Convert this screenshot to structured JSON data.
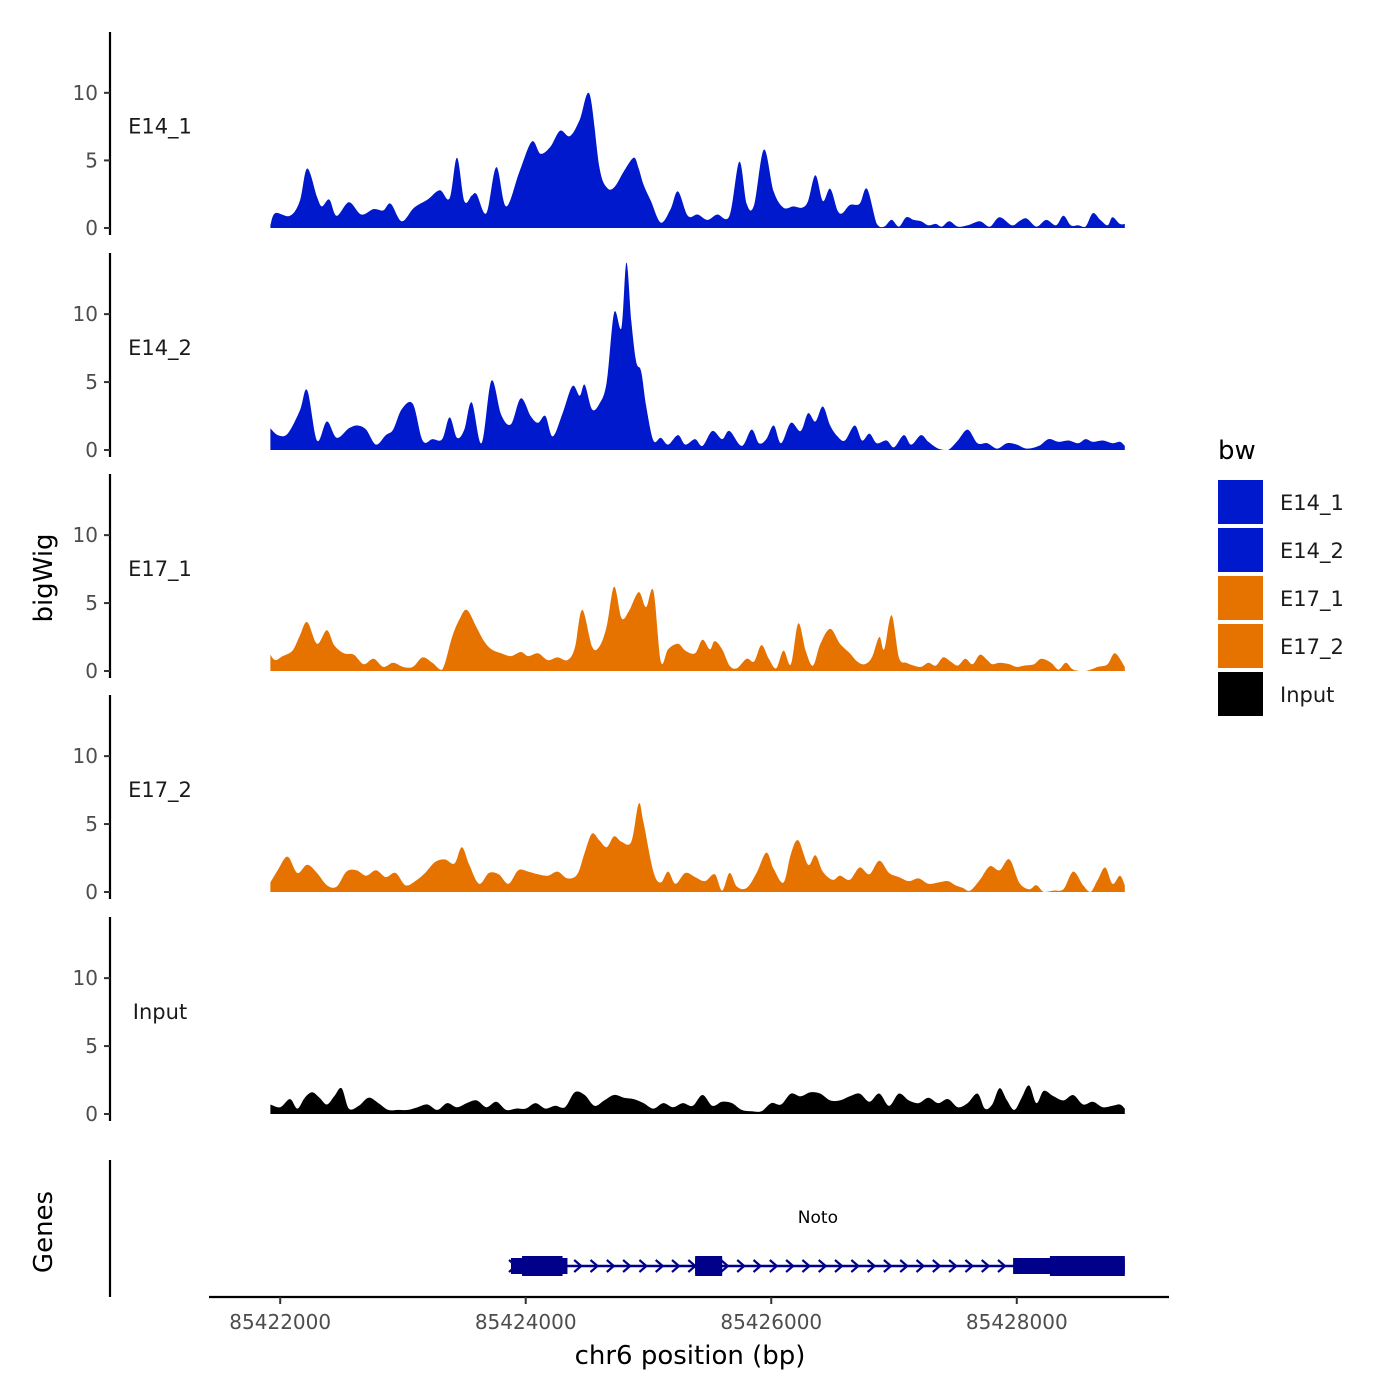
{
  "chart_data": {
    "type": "area",
    "xlabel": "chr6 position (bp)",
    "ylabel": "bigWig",
    "genes_label": "Genes",
    "xlim": [
      85421420,
      85429240
    ],
    "x_ticks": [
      85422000,
      85424000,
      85426000,
      85428000
    ],
    "ylim": [
      0,
      14.5
    ],
    "y_ticks": [
      0,
      5,
      10
    ],
    "legend": {
      "title": "bw",
      "items": [
        {
          "label": "E14_1",
          "color": "#0019CC"
        },
        {
          "label": "E14_2",
          "color": "#0019CC"
        },
        {
          "label": "E17_1",
          "color": "#E67300"
        },
        {
          "label": "E17_2",
          "color": "#E67300"
        },
        {
          "label": "Input",
          "color": "#000000"
        }
      ]
    },
    "tracks": [
      {
        "name": "E14_1",
        "color": "#0019CC",
        "x": [
          85421920,
          85421960,
          85422080,
          85422160,
          85422220,
          85422300,
          85422340,
          85422400,
          85422460,
          85422560,
          85422660,
          85422760,
          85422840,
          85422900,
          85422990,
          85423090,
          85423200,
          85423300,
          85423380,
          85423440,
          85423500,
          85423560,
          85423600,
          85423680,
          85423760,
          85423840,
          85423950,
          85424050,
          85424120,
          85424200,
          85424280,
          85424360,
          85424440,
          85424520,
          85424600,
          85424660,
          85424720,
          85424800,
          85424880,
          85424920,
          85424960,
          85425020,
          85425100,
          85425180,
          85425240,
          85425320,
          85425400,
          85425480,
          85425560,
          85425660,
          85425740,
          85425800,
          85425860,
          85425940,
          85426020,
          85426100,
          85426180,
          85426250,
          85426300,
          85426360,
          85426420,
          85426480,
          85426540,
          85426580,
          85426640,
          85426720,
          85426780,
          85426860,
          85426920,
          85426980,
          85427040,
          85427100,
          85427160,
          85427220,
          85427280,
          85427340,
          85427390,
          85427450,
          85427520,
          85427600,
          85427700,
          85427780,
          85427860,
          85427960,
          85428020,
          85428080,
          85428160,
          85428240,
          85428320,
          85428380,
          85428440,
          85428500,
          85428560,
          85428620,
          85428680,
          85428740,
          85428780,
          85428840,
          85428880
        ],
        "values": [
          0.2,
          1.1,
          0.9,
          2.0,
          4.4,
          2.3,
          1.6,
          2.1,
          0.9,
          1.9,
          1.0,
          1.4,
          1.3,
          1.8,
          0.5,
          1.5,
          2.1,
          2.8,
          2.2,
          5.2,
          2.0,
          2.4,
          2.5,
          1.1,
          4.5,
          1.6,
          4.2,
          6.4,
          5.5,
          6.0,
          7.2,
          6.8,
          8.0,
          9.9,
          4.5,
          3.0,
          3.0,
          4.2,
          5.2,
          4.4,
          3.2,
          2.0,
          0.4,
          1.4,
          2.7,
          0.9,
          1.0,
          0.6,
          1.0,
          0.9,
          4.9,
          1.8,
          1.7,
          5.8,
          2.7,
          1.5,
          1.6,
          1.5,
          2.0,
          3.9,
          2.0,
          2.9,
          1.3,
          1.1,
          1.7,
          1.8,
          2.9,
          0.3,
          0.1,
          0.6,
          0.1,
          0.8,
          0.6,
          0.5,
          0.2,
          0.3,
          0.1,
          0.5,
          0.1,
          0.2,
          0.5,
          0.1,
          0.8,
          0.2,
          0.5,
          0.7,
          0.1,
          0.6,
          0.2,
          0.9,
          0.2,
          0.2,
          0.1,
          1.1,
          0.6,
          0.2,
          0.8,
          0.3,
          0.3
        ]
      },
      {
        "name": "E14_2",
        "color": "#0019CC",
        "x": [
          85421920,
          85421980,
          85422060,
          85422160,
          85422220,
          85422300,
          85422380,
          85422460,
          85422560,
          85422630,
          85422700,
          85422780,
          85422860,
          85422920,
          85422990,
          85423080,
          85423160,
          85423240,
          85423320,
          85423380,
          85423440,
          85423500,
          85423560,
          85423640,
          85423720,
          85423800,
          85423880,
          85423960,
          85424040,
          85424100,
          85424160,
          85424220,
          85424300,
          85424380,
          85424440,
          85424480,
          85424540,
          85424600,
          85424660,
          85424720,
          85424780,
          85424820,
          85424860,
          85424900,
          85424940,
          85424980,
          85425040,
          85425100,
          85425160,
          85425240,
          85425300,
          85425380,
          85425440,
          85425520,
          85425600,
          85425660,
          85425760,
          85425840,
          85425900,
          85425960,
          85426020,
          85426080,
          85426160,
          85426240,
          85426300,
          85426360,
          85426420,
          85426480,
          85426540,
          85426600,
          85426680,
          85426740,
          85426800,
          85426860,
          85426940,
          85427000,
          85427080,
          85427140,
          85427220,
          85427280,
          85427360,
          85427440,
          85427520,
          85427600,
          85427680,
          85427760,
          85427840,
          85427920,
          85428000,
          85428080,
          85428180,
          85428260,
          85428340,
          85428420,
          85428500,
          85428560,
          85428620,
          85428700,
          85428780,
          85428840,
          85428880
        ],
        "values": [
          1.6,
          1.1,
          1.2,
          2.9,
          4.4,
          0.7,
          2.1,
          0.9,
          1.6,
          1.8,
          1.5,
          0.4,
          1.1,
          1.5,
          3.0,
          3.4,
          0.7,
          0.8,
          0.8,
          2.4,
          0.9,
          1.5,
          3.5,
          0.5,
          5.1,
          2.6,
          1.9,
          3.8,
          2.5,
          2.0,
          2.5,
          1.0,
          2.7,
          4.7,
          4.0,
          4.8,
          3.0,
          3.4,
          5.0,
          10.1,
          9.0,
          13.8,
          9.5,
          6.5,
          5.8,
          3.3,
          0.7,
          0.9,
          0.4,
          1.1,
          0.4,
          0.8,
          0.3,
          1.4,
          0.8,
          1.4,
          0.3,
          1.5,
          0.5,
          0.8,
          1.8,
          0.5,
          2.0,
          1.4,
          2.7,
          2.1,
          3.2,
          1.8,
          1.0,
          0.7,
          1.8,
          0.7,
          1.2,
          0.5,
          0.7,
          0.2,
          1.1,
          0.4,
          1.1,
          0.6,
          0.1,
          0.0,
          0.7,
          1.5,
          0.5,
          0.5,
          0.1,
          0.5,
          0.4,
          0.1,
          0.3,
          0.8,
          0.6,
          0.7,
          0.5,
          0.8,
          0.6,
          0.7,
          0.5,
          0.6,
          0.3
        ]
      },
      {
        "name": "E17_1",
        "color": "#E67300",
        "x": [
          85421920,
          85421960,
          85422020,
          85422100,
          85422160,
          85422220,
          85422300,
          85422380,
          85422440,
          85422520,
          85422600,
          85422680,
          85422760,
          85422840,
          85422920,
          85423000,
          85423080,
          85423160,
          85423240,
          85423320,
          85423400,
          85423460,
          85423520,
          85423600,
          85423660,
          85423720,
          85423800,
          85423880,
          85423960,
          85424020,
          85424100,
          85424180,
          85424260,
          85424340,
          85424400,
          85424460,
          85424540,
          85424600,
          85424660,
          85424720,
          85424780,
          85424840,
          85424920,
          85424980,
          85425040,
          85425100,
          85425160,
          85425240,
          85425300,
          85425380,
          85425440,
          85425500,
          85425540,
          85425600,
          85425660,
          85425720,
          85425800,
          85425860,
          85425920,
          85425980,
          85426040,
          85426100,
          85426160,
          85426220,
          85426280,
          85426340,
          85426400,
          85426480,
          85426560,
          85426640,
          85426700,
          85426760,
          85426820,
          85426880,
          85426920,
          85426980,
          85427040,
          85427100,
          85427160,
          85427220,
          85427280,
          85427340,
          85427400,
          85427460,
          85427520,
          85427580,
          85427640,
          85427700,
          85427760,
          85427800,
          85427860,
          85427940,
          85428000,
          85428060,
          85428140,
          85428200,
          85428280,
          85428340,
          85428400,
          85428460,
          85428560,
          85428660,
          85428740,
          85428800,
          85428880
        ],
        "values": [
          1.2,
          0.8,
          1.1,
          1.5,
          2.6,
          3.6,
          2.0,
          3.0,
          1.9,
          1.3,
          1.2,
          0.5,
          0.9,
          0.3,
          0.6,
          0.3,
          0.3,
          1.0,
          0.6,
          0.1,
          2.5,
          3.8,
          4.5,
          3.2,
          2.2,
          1.6,
          1.3,
          1.1,
          1.4,
          1.1,
          1.3,
          0.8,
          1.0,
          0.8,
          1.7,
          4.5,
          1.8,
          1.8,
          3.3,
          6.2,
          3.9,
          4.4,
          5.8,
          4.7,
          5.9,
          0.7,
          1.6,
          2.0,
          1.5,
          1.3,
          2.3,
          1.6,
          2.2,
          1.6,
          0.4,
          0.2,
          0.9,
          0.7,
          1.9,
          0.9,
          0.2,
          1.5,
          0.5,
          3.5,
          1.5,
          0.4,
          2.0,
          3.1,
          2.0,
          1.3,
          0.7,
          0.5,
          1.0,
          2.5,
          1.6,
          4.1,
          1.0,
          0.6,
          0.4,
          0.3,
          0.6,
          0.4,
          1.0,
          0.7,
          0.4,
          0.9,
          0.5,
          1.2,
          0.8,
          0.5,
          0.6,
          0.5,
          0.3,
          0.4,
          0.5,
          0.9,
          0.6,
          0.1,
          0.6,
          0.1,
          0.0,
          0.3,
          0.5,
          1.3,
          0.3
        ]
      },
      {
        "name": "E17_2",
        "color": "#E67300",
        "x": [
          85421920,
          85421980,
          85422060,
          85422140,
          85422220,
          85422300,
          85422380,
          85422460,
          85422540,
          85422620,
          85422700,
          85422780,
          85422860,
          85422940,
          85423020,
          85423100,
          85423180,
          85423260,
          85423340,
          85423420,
          85423480,
          85423540,
          85423620,
          85423700,
          85423780,
          85423860,
          85423940,
          85424020,
          85424100,
          85424180,
          85424260,
          85424340,
          85424420,
          85424480,
          85424540,
          85424600,
          85424660,
          85424720,
          85424780,
          85424860,
          85424920,
          85424960,
          85425040,
          85425100,
          85425160,
          85425220,
          85425300,
          85425380,
          85425460,
          85425540,
          85425600,
          85425660,
          85425720,
          85425800,
          85425880,
          85425960,
          85426020,
          85426100,
          85426160,
          85426220,
          85426300,
          85426360,
          85426420,
          85426500,
          85426560,
          85426640,
          85426720,
          85426800,
          85426880,
          85426960,
          85427040,
          85427120,
          85427200,
          85427280,
          85427360,
          85427440,
          85427500,
          85427560,
          85427620,
          85427700,
          85427780,
          85427860,
          85427940,
          85428020,
          85428100,
          85428160,
          85428220,
          85428300,
          85428380,
          85428460,
          85428540,
          85428600,
          85428660,
          85428720,
          85428780,
          85428840,
          85428880
        ],
        "values": [
          0.7,
          1.6,
          2.6,
          1.4,
          2.0,
          1.4,
          0.5,
          0.4,
          1.5,
          1.6,
          1.2,
          1.6,
          1.1,
          1.4,
          0.5,
          0.8,
          1.4,
          2.2,
          2.4,
          2.1,
          3.3,
          2.0,
          0.6,
          1.4,
          1.3,
          0.6,
          1.6,
          1.5,
          1.3,
          1.2,
          1.5,
          1.0,
          1.3,
          2.9,
          4.3,
          3.8,
          3.3,
          4.1,
          3.7,
          3.7,
          6.5,
          5.1,
          1.5,
          0.7,
          1.5,
          0.6,
          1.4,
          1.1,
          0.8,
          1.3,
          0.1,
          1.4,
          0.4,
          0.3,
          1.4,
          2.9,
          1.7,
          0.7,
          2.8,
          3.8,
          2.0,
          2.7,
          1.5,
          0.9,
          1.2,
          0.9,
          1.8,
          1.3,
          2.3,
          1.4,
          1.1,
          0.8,
          1.0,
          0.6,
          0.7,
          0.8,
          0.5,
          0.3,
          0.1,
          0.9,
          1.9,
          1.6,
          2.4,
          0.7,
          0.2,
          0.5,
          0.0,
          0.1,
          0.2,
          1.5,
          0.5,
          0.0,
          0.9,
          1.8,
          0.6,
          1.2,
          0.5
        ]
      },
      {
        "name": "Input",
        "color": "#000000",
        "x": [
          85421920,
          85422000,
          85422080,
          85422140,
          85422200,
          85422260,
          85422320,
          85422380,
          85422440,
          85422500,
          85422560,
          85422640,
          85422720,
          85422800,
          85422880,
          85422960,
          85423040,
          85423120,
          85423200,
          85423280,
          85423360,
          85423440,
          85423520,
          85423600,
          85423680,
          85423760,
          85423840,
          85423920,
          85424000,
          85424080,
          85424160,
          85424240,
          85424320,
          85424400,
          85424480,
          85424560,
          85424640,
          85424720,
          85424800,
          85424880,
          85424960,
          85425040,
          85425120,
          85425200,
          85425280,
          85425360,
          85425440,
          85425520,
          85425600,
          85425680,
          85425760,
          85425840,
          85425920,
          85426000,
          85426080,
          85426160,
          85426240,
          85426320,
          85426400,
          85426480,
          85426560,
          85426640,
          85426720,
          85426800,
          85426880,
          85426960,
          85427040,
          85427120,
          85427200,
          85427280,
          85427360,
          85427440,
          85427520,
          85427600,
          85427680,
          85427740,
          85427800,
          85427860,
          85427920,
          85427980,
          85428040,
          85428100,
          85428160,
          85428220,
          85428300,
          85428380,
          85428460,
          85428540,
          85428620,
          85428700,
          85428780,
          85428840,
          85428880
        ],
        "values": [
          0.7,
          0.5,
          1.1,
          0.4,
          1.2,
          1.6,
          1.2,
          0.7,
          1.3,
          1.9,
          0.4,
          0.6,
          1.2,
          0.8,
          0.3,
          0.3,
          0.3,
          0.5,
          0.7,
          0.3,
          0.8,
          0.5,
          0.8,
          1.0,
          0.5,
          0.9,
          0.3,
          0.4,
          0.4,
          0.8,
          0.4,
          0.6,
          0.5,
          1.6,
          1.4,
          0.6,
          1.0,
          1.4,
          1.2,
          1.1,
          0.8,
          0.4,
          0.8,
          0.5,
          0.8,
          0.6,
          1.4,
          0.6,
          0.9,
          0.8,
          0.3,
          0.2,
          0.2,
          0.8,
          0.7,
          1.5,
          1.3,
          1.6,
          1.5,
          1.0,
          1.0,
          1.3,
          1.5,
          0.9,
          1.5,
          0.6,
          1.5,
          1.0,
          0.8,
          1.2,
          0.8,
          1.1,
          0.5,
          0.8,
          1.5,
          0.4,
          0.7,
          1.9,
          1.0,
          0.3,
          1.2,
          2.1,
          0.8,
          1.7,
          1.3,
          1.0,
          1.4,
          0.7,
          0.9,
          0.5,
          0.6,
          0.7,
          0.4
        ]
      }
    ],
    "gene": {
      "name": "Noto",
      "start": 85423880,
      "end": 85428880,
      "exons": [
        {
          "start": 85423880,
          "end": 85424340,
          "thick_start": 85423970,
          "thick_end": 85424300
        },
        {
          "start": 85425380,
          "end": 85425600,
          "thick_start": 85425380,
          "thick_end": 85425600
        },
        {
          "start": 85427970,
          "end": 85428880,
          "thick_start": 85428270,
          "thick_end": 85428880
        }
      ]
    }
  }
}
